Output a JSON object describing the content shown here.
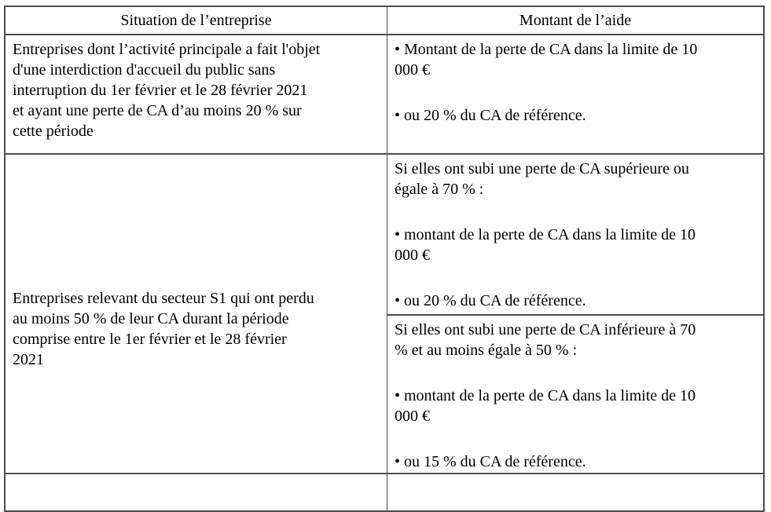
{
  "styles": {
    "border_color": "#4d4d4d",
    "text_color": "#000000",
    "background_color": "#ffffff"
  },
  "table": {
    "headers": {
      "situation": "Situation de l’entreprise",
      "montant": "Montant de l’aide"
    },
    "row1": {
      "situation": "Entreprises dont l’activité principale a fait l'objet\nd'une interdiction d'accueil du public sans\ninterruption du 1er février et le 28 février 2021\net ayant une perte de CA d’au moins 20 % sur\ncette période",
      "aide": {
        "p1": "• Montant de la perte de CA dans la limite de 10\n000 €",
        "p2": "• ou 20 % du CA de référence."
      }
    },
    "row2": {
      "situation": "Entreprises relevant du secteur S1 qui ont perdu\nau moins 50 % de leur CA durant la période\ncomprise entre le 1er février et le 28 février\n2021",
      "aide_ge70": {
        "intro": "Si elles ont subi une perte de CA supérieure ou\négale à 70 % :",
        "p1": "• montant de la perte de CA dans la limite de 10\n000 €",
        "p2": "• ou 20 % du CA de référence."
      },
      "aide_50_70": {
        "intro": "Si elles ont subi une perte de CA inférieure à 70\n% et au moins égale à 50 % :",
        "p1": "• montant de la perte de CA dans la limite de 10\n000 €",
        "p2": "• ou 15 % du CA de référence."
      }
    }
  }
}
